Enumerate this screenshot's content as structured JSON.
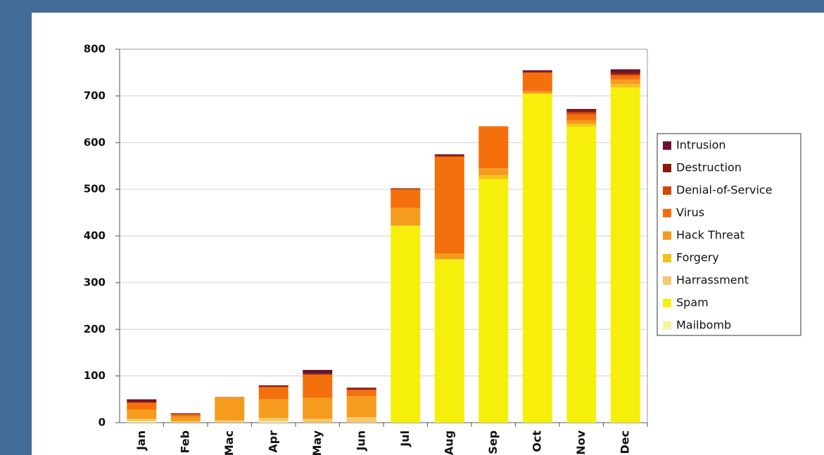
{
  "chart_data": {
    "type": "stacked_bar",
    "categories": [
      "Jan",
      "Feb",
      "Mac",
      "Apr",
      "May",
      "Jun",
      "Jul",
      "Aug",
      "Sep",
      "Oct",
      "Nov",
      "Dec"
    ],
    "series": [
      {
        "name": "Mailbomb",
        "color": "#f6f2a2",
        "values": [
          3,
          0,
          0,
          3,
          0,
          0,
          0,
          0,
          0,
          0,
          0,
          0
        ]
      },
      {
        "name": "Spam",
        "color": "#f6ef0c",
        "values": [
          0,
          0,
          0,
          0,
          0,
          0,
          422,
          350,
          522,
          705,
          635,
          718
        ]
      },
      {
        "name": "Harrassment",
        "color": "#f6c86c",
        "values": [
          5,
          3,
          5,
          7,
          8,
          12,
          0,
          0,
          0,
          0,
          0,
          0
        ]
      },
      {
        "name": "Forgery",
        "color": "#f4c21c",
        "values": [
          0,
          0,
          0,
          0,
          0,
          0,
          0,
          0,
          8,
          0,
          5,
          7
        ]
      },
      {
        "name": "Hack Threat",
        "color": "#f59c1e",
        "values": [
          20,
          10,
          48,
          40,
          45,
          45,
          38,
          12,
          15,
          5,
          8,
          10
        ]
      },
      {
        "name": "Virus",
        "color": "#f3700c",
        "values": [
          15,
          5,
          2,
          25,
          50,
          12,
          40,
          208,
          90,
          40,
          12,
          8
        ]
      },
      {
        "name": "Denial-of-Service",
        "color": "#d4480a",
        "values": [
          0,
          0,
          0,
          2,
          0,
          2,
          0,
          0,
          0,
          0,
          5,
          3
        ]
      },
      {
        "name": "Destruction",
        "color": "#8c1a04",
        "values": [
          3,
          2,
          0,
          3,
          2,
          4,
          2,
          3,
          0,
          2,
          4,
          5
        ]
      },
      {
        "name": "Intrusion",
        "color": "#6a1030",
        "values": [
          4,
          0,
          0,
          0,
          8,
          0,
          0,
          2,
          0,
          3,
          3,
          6
        ]
      }
    ],
    "ylim": [
      0,
      800
    ],
    "yticks": [
      0,
      100,
      200,
      300,
      400,
      500,
      600,
      700,
      800
    ],
    "grid": true,
    "legend": "right"
  }
}
